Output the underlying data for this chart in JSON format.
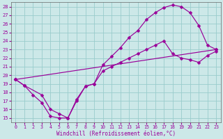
{
  "xlabel": "Windchill (Refroidissement éolien,°C)",
  "bg_color": "#cce8e8",
  "grid_color": "#99cccc",
  "line_color": "#990099",
  "xlim": [
    -0.5,
    23.5
  ],
  "ylim": [
    14.5,
    28.5
  ],
  "xticks": [
    0,
    1,
    2,
    3,
    4,
    5,
    6,
    7,
    8,
    9,
    10,
    11,
    12,
    13,
    14,
    15,
    16,
    17,
    18,
    19,
    20,
    21,
    22,
    23
  ],
  "yticks": [
    15,
    16,
    17,
    18,
    19,
    20,
    21,
    22,
    23,
    24,
    25,
    26,
    27,
    28
  ],
  "line1_x": [
    0,
    1,
    2,
    3,
    4,
    5,
    6,
    7,
    8,
    9,
    10,
    11,
    12,
    13,
    14,
    15,
    16,
    17,
    18,
    19,
    20,
    21,
    22,
    23
  ],
  "line1_y": [
    19.5,
    18.8,
    17.7,
    16.8,
    15.2,
    15.0,
    15.0,
    17.2,
    18.7,
    19.0,
    21.2,
    22.2,
    23.2,
    24.4,
    25.2,
    26.5,
    27.3,
    27.9,
    28.2,
    28.0,
    27.3,
    25.8,
    23.5,
    23.0
  ],
  "line2_x": [
    0,
    1,
    3,
    4,
    5,
    6,
    7,
    8,
    9,
    10,
    11,
    12,
    13,
    14,
    15,
    16,
    17,
    18,
    19,
    20,
    21,
    22,
    23
  ],
  "line2_y": [
    19.5,
    18.8,
    17.7,
    16.0,
    15.5,
    15.0,
    17.0,
    18.7,
    19.0,
    20.5,
    21.0,
    21.5,
    22.0,
    22.5,
    23.0,
    23.5,
    24.0,
    22.5,
    22.0,
    21.8,
    21.5,
    22.3,
    22.8
  ],
  "line3_x": [
    0,
    23
  ],
  "line3_y": [
    19.5,
    23.0
  ],
  "markersize": 2.5,
  "linewidth": 0.85
}
